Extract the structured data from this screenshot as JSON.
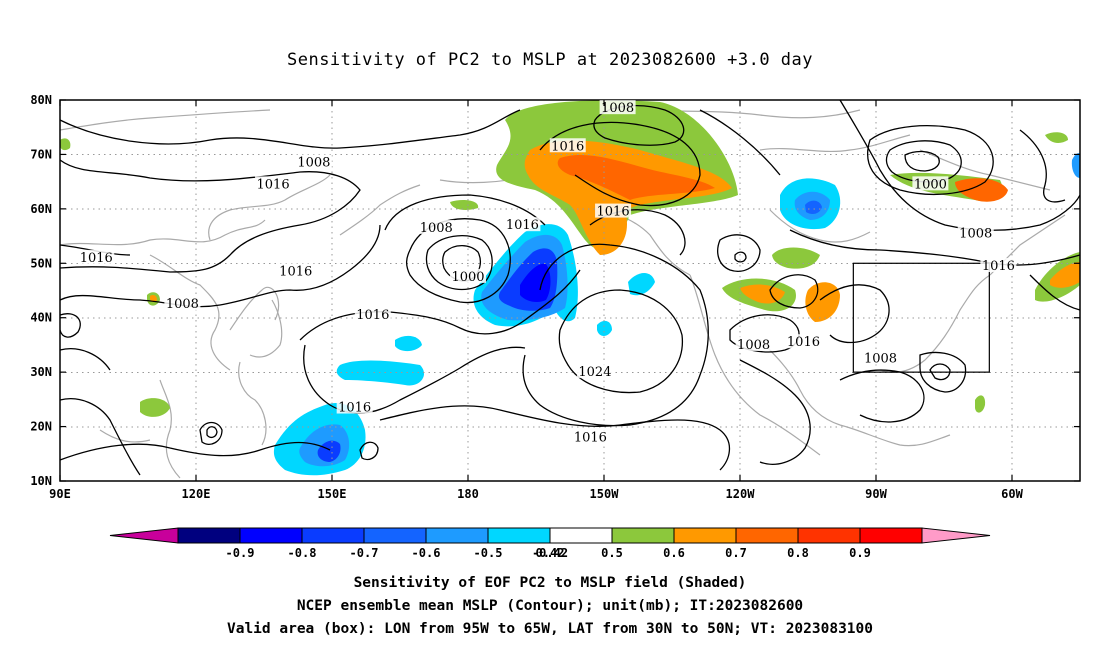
{
  "title": "Sensitivity of PC2 to MSLP at 2023082600 +3.0 day",
  "map": {
    "lat_labels": [
      "80N",
      "70N",
      "60N",
      "50N",
      "40N",
      "30N",
      "20N",
      "10N"
    ],
    "lon_labels": [
      "90E",
      "120E",
      "150E",
      "180",
      "150W",
      "120W",
      "90W",
      "60W"
    ],
    "contour_labels": [
      {
        "text": "1008",
        "lon": -147,
        "lat": 78.5
      },
      {
        "text": "1016",
        "lon": -158,
        "lat": 71.5
      },
      {
        "text": "1008",
        "lon": 146,
        "lat": 68.5
      },
      {
        "text": "1016",
        "lon": 137,
        "lat": 64.5
      },
      {
        "text": "1008",
        "lon": 173,
        "lat": 56.5
      },
      {
        "text": "1016",
        "lon": -168,
        "lat": 57
      },
      {
        "text": "1016",
        "lon": -148,
        "lat": 59.5
      },
      {
        "text": "1000",
        "lon": 180,
        "lat": 47.5
      },
      {
        "text": "1016",
        "lon": 98,
        "lat": 51
      },
      {
        "text": "1016",
        "lon": 142,
        "lat": 48.5
      },
      {
        "text": "1008",
        "lon": 117,
        "lat": 42.5
      },
      {
        "text": "1016",
        "lon": 159,
        "lat": 40.5
      },
      {
        "text": "1024",
        "lon": -152,
        "lat": 30
      },
      {
        "text": "1016",
        "lon": 155,
        "lat": 23.5
      },
      {
        "text": "1016",
        "lon": -153,
        "lat": 18
      },
      {
        "text": "1008",
        "lon": -117,
        "lat": 35
      },
      {
        "text": "1016",
        "lon": -106,
        "lat": 35.5
      },
      {
        "text": "1008",
        "lon": -89,
        "lat": 32.5
      },
      {
        "text": "1000",
        "lon": -78,
        "lat": 64.5
      },
      {
        "text": "1008",
        "lon": -68,
        "lat": 55.5
      },
      {
        "text": "1016",
        "lon": -63,
        "lat": 49.5
      }
    ],
    "valid_box": {
      "lon_min": -95,
      "lon_max": -65,
      "lat_min": 30,
      "lat_max": 50
    }
  },
  "colorbar": {
    "labels": [
      "-0.9",
      "-0.8",
      "-0.7",
      "-0.6",
      "-0.5",
      "-0.42",
      "0.42",
      "0.5",
      "0.6",
      "0.7",
      "0.8",
      "0.9"
    ],
    "colors": [
      "#00007f",
      "#0000ff",
      "#0a3cff",
      "#1464ff",
      "#1e9bff",
      "#00d7ff",
      "#ffffff",
      "#8cc83c",
      "#ff9900",
      "#ff6600",
      "#ff3300",
      "#ff0000"
    ],
    "under_color": "#c8009b",
    "over_color": "#ff9bc8"
  },
  "captions": {
    "line1": "Sensitivity of EOF PC2 to MSLP field (Shaded)",
    "line2": "NCEP ensemble mean MSLP (Contour); unit(mb); IT:2023082600",
    "line3": "Valid area (box): LON from 95W to 65W, LAT from 30N to 50N; VT: 2023083100"
  }
}
